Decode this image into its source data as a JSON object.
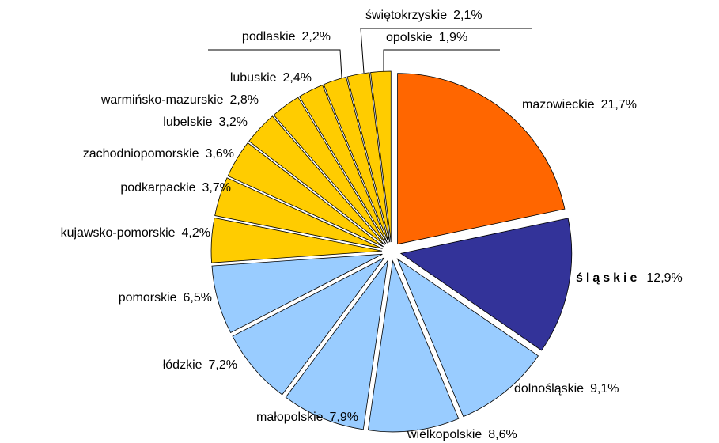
{
  "chart_data": {
    "type": "pie",
    "categories": [
      "mazowieckie",
      "śląskie",
      "dolnośląskie",
      "wielkopolskie",
      "małopolskie",
      "łódzkie",
      "pomorskie",
      "kujawsko-pomorskie",
      "podkarpackie",
      "zachodniopomorskie",
      "lubelskie",
      "warmińsko-mazurskie",
      "lubuskie",
      "podlaskie",
      "świętokrzyskie",
      "opolskie"
    ],
    "values": [
      21.7,
      12.9,
      9.1,
      8.6,
      7.9,
      7.2,
      6.5,
      4.2,
      3.7,
      3.6,
      3.2,
      2.8,
      2.4,
      2.2,
      2.1,
      1.9
    ],
    "value_labels": [
      "21,7%",
      "12,9%",
      "9,1%",
      "8,6%",
      "7,9%",
      "7,2%",
      "6,5%",
      "4,2%",
      "3,7%",
      "3,6%",
      "3,2%",
      "2,8%",
      "2,4%",
      "2,2%",
      "2,1%",
      "1,9%"
    ],
    "colors": [
      "#ff6600",
      "#333399",
      "#99ccff",
      "#99ccff",
      "#99ccff",
      "#99ccff",
      "#99ccff",
      "#ffcc00",
      "#ffcc00",
      "#ffcc00",
      "#ffcc00",
      "#ffcc00",
      "#ffcc00",
      "#ffcc00",
      "#ffcc00",
      "#ffcc00"
    ]
  }
}
